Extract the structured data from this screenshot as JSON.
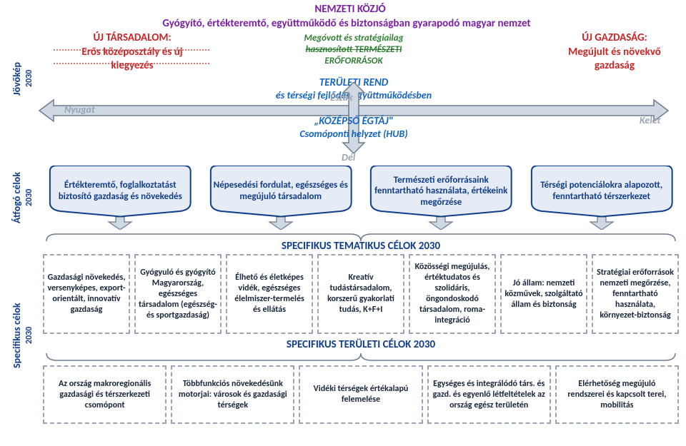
{
  "colors": {
    "darkBlue": "#0f3d8a",
    "purple": "#7b1fa2",
    "green": "#2e7d32",
    "red": "#c62828",
    "blue": "#1565c0",
    "grey": "#9aa4b0",
    "boxFill": "#e6ecf5",
    "boxStroke": "#0f3d8a",
    "arrowFill": "#cfd8e3",
    "arrowStroke": "#6b7b90"
  },
  "vlabels": {
    "jovokep": {
      "line1": "Jövőkép",
      "line2": "2030"
    },
    "atfogo": {
      "line1": "Átfogó célok",
      "line2": "2030"
    },
    "spec": {
      "line1": "Specifikus célok",
      "line2": "2030"
    }
  },
  "top": {
    "title1": "NEMZETI KÖZJÓ",
    "title2": "Gyógyító, értékteremtő, együttműködő és biztonságban gyarapodó magyar nemzet",
    "greenA": "Megóvott és stratégiailag",
    "greenB": "hasznosított TERMÉSZETI",
    "greenC": "ERŐFORRÁSOK",
    "blueA": "TERÜLETI REND",
    "blueB": "és térségi fejlődés együttműködésben",
    "blueC": "„KÖZÉPSŐ ÉGTÁJ\"",
    "blueD": "Csomóponti helyzet (HUB)",
    "dirN": "Észak",
    "dirS": "Dél",
    "dirW": "Nyugat",
    "dirE": "Kelet"
  },
  "corners": {
    "left": "ÚJ TÁRSADALOM:\nErős középosztály és új\nkiegyezés",
    "right": "ÚJ GAZDASÁG:\nMegújult és növekvő\ngazdaság"
  },
  "atfogo": [
    "Értékteremtő, foglalkoztatást biztosító gazdaság és növekedés",
    "Népesedési fordulat, egészséges és megújuló társadalom",
    "Természeti erőforrásaink fenntartható használata, értékeink megőrzése",
    "Térségi potenciálokra alapozott, fenntartható térszerkezet"
  ],
  "specTitles": {
    "tematikus": "SPECIFIKUS TEMATIKUS CÉLOK 2030",
    "teruleti": "SPECIFIKUS TERÜLETI CÉLOK 2030"
  },
  "spec1": [
    "Gazdasági növekedés, versenyképes, export-orientált, innovatív gazdaság",
    "Gyógyuló és gyógyító Magyarország, egészséges társadalom (egészség- és sportgazdaság)",
    "Élhető és életképes vidék, egészséges élelmiszer-termelés és ellátás",
    "Kreatív tudástársadalom, korszerű gyakorlati tudás, K+F+I",
    "Közösségi megújulás, értéktudatos és szolidáris, öngondoskodó társadalom, roma-integráció",
    "Jó állam: nemzeti közművek, szolgáltató állam és biztonság",
    "Stratégiai erőforrások nemzeti megőrzése, fenntartható használata, környezet-biztonság"
  ],
  "spec2": [
    "Az ország makroregionális gazdasági és térszerkezeti csomópont",
    "Többfunkciós növekedésünk motorjai: városok és gazdasági térségek",
    "Vidéki térségek értékalapú felemelése",
    "Egységes és integrálódó társ. és gazd. és egyenlő létfeltételek az ország egész területén",
    "Elérhetőség megújuló rendszerei és kapcsolt terei, mobilitás"
  ]
}
